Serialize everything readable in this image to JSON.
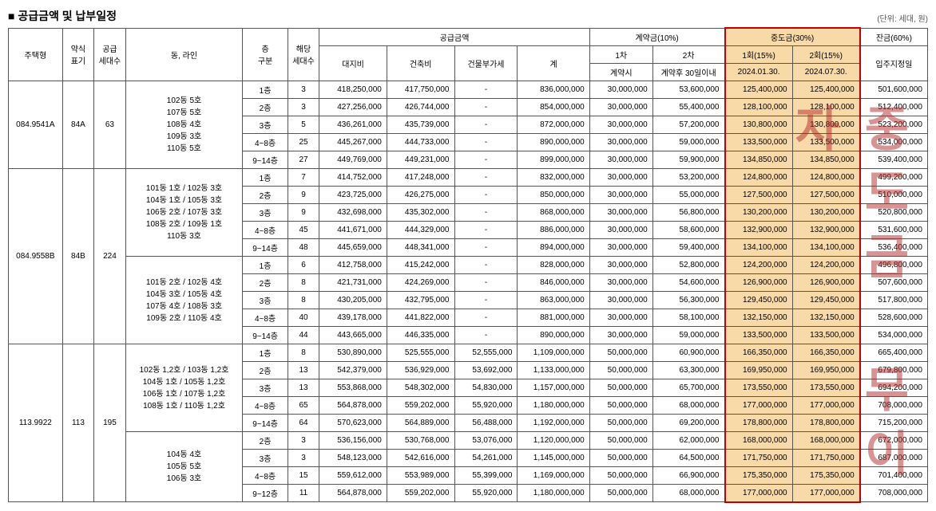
{
  "title": "■ 공급금액 및 납부일정",
  "unit": "(단위: 세대, 원)",
  "headers": {
    "housing_type": "주택형",
    "abbrev": "약식\n표기",
    "units": "공급\n세대수",
    "dong_line": "동, 라인",
    "floor": "층\n구분",
    "dong_units": "해당\n세대수",
    "supply_amount": "공급금액",
    "land": "대지비",
    "build": "건축비",
    "vat": "건물부가세",
    "total": "계",
    "contract_group": "계약금(10%)",
    "c1": "1차",
    "c2": "2차",
    "c1_sub": "계약시",
    "c2_sub": "계약후 30일이내",
    "interim_group": "중도금(30%)",
    "i1": "1회(15%)",
    "i2": "2회(15%)",
    "i1_date": "2024.01.30.",
    "i2_date": "2024.07.30.",
    "balance_group": "잔금(60%)",
    "balance_sub": "입주지정일"
  },
  "groups": [
    {
      "housing_type": "084.9541A",
      "abbrev": "84A",
      "units": "63",
      "blocks": [
        {
          "dong": "102동 5호\n107동 5호\n108동 4호\n109동 3호\n110동 5호",
          "rows": [
            {
              "floor": "1층",
              "u": "3",
              "land": "418,250,000",
              "build": "417,750,000",
              "vat": "-",
              "total": "836,000,000",
              "c1": "30,000,000",
              "c2": "53,600,000",
              "i1": "125,400,000",
              "i2": "125,400,000",
              "bal": "501,600,000"
            },
            {
              "floor": "2층",
              "u": "3",
              "land": "427,256,000",
              "build": "426,744,000",
              "vat": "-",
              "total": "854,000,000",
              "c1": "30,000,000",
              "c2": "55,400,000",
              "i1": "128,100,000",
              "i2": "128,100,000",
              "bal": "512,400,000"
            },
            {
              "floor": "3층",
              "u": "5",
              "land": "436,261,000",
              "build": "435,739,000",
              "vat": "-",
              "total": "872,000,000",
              "c1": "30,000,000",
              "c2": "57,200,000",
              "i1": "130,800,000",
              "i2": "130,800,000",
              "bal": "523,200,000"
            },
            {
              "floor": "4~8층",
              "u": "25",
              "land": "445,267,000",
              "build": "444,733,000",
              "vat": "-",
              "total": "890,000,000",
              "c1": "30,000,000",
              "c2": "59,000,000",
              "i1": "133,500,000",
              "i2": "133,500,000",
              "bal": "534,000,000"
            },
            {
              "floor": "9~14층",
              "u": "27",
              "land": "449,769,000",
              "build": "449,231,000",
              "vat": "-",
              "total": "899,000,000",
              "c1": "30,000,000",
              "c2": "59,900,000",
              "i1": "134,850,000",
              "i2": "134,850,000",
              "bal": "539,400,000"
            }
          ]
        }
      ]
    },
    {
      "housing_type": "084.9558B",
      "abbrev": "84B",
      "units": "224",
      "blocks": [
        {
          "dong": "101동 1호 / 102동 3호\n104동 1호 / 105동 3호\n106동 2호 / 107동 3호\n108동 2호 / 109동 1호\n110동 3호",
          "rows": [
            {
              "floor": "1층",
              "u": "7",
              "land": "414,752,000",
              "build": "417,248,000",
              "vat": "-",
              "total": "832,000,000",
              "c1": "30,000,000",
              "c2": "53,200,000",
              "i1": "124,800,000",
              "i2": "124,800,000",
              "bal": "499,200,000"
            },
            {
              "floor": "2층",
              "u": "9",
              "land": "423,725,000",
              "build": "426,275,000",
              "vat": "-",
              "total": "850,000,000",
              "c1": "30,000,000",
              "c2": "55,000,000",
              "i1": "127,500,000",
              "i2": "127,500,000",
              "bal": "510,000,000"
            },
            {
              "floor": "3층",
              "u": "9",
              "land": "432,698,000",
              "build": "435,302,000",
              "vat": "-",
              "total": "868,000,000",
              "c1": "30,000,000",
              "c2": "56,800,000",
              "i1": "130,200,000",
              "i2": "130,200,000",
              "bal": "520,800,000"
            },
            {
              "floor": "4~8층",
              "u": "45",
              "land": "441,671,000",
              "build": "444,329,000",
              "vat": "-",
              "total": "886,000,000",
              "c1": "30,000,000",
              "c2": "58,600,000",
              "i1": "132,900,000",
              "i2": "132,900,000",
              "bal": "531,600,000"
            },
            {
              "floor": "9~14층",
              "u": "48",
              "land": "445,659,000",
              "build": "448,341,000",
              "vat": "-",
              "total": "894,000,000",
              "c1": "30,000,000",
              "c2": "59,400,000",
              "i1": "134,100,000",
              "i2": "134,100,000",
              "bal": "536,400,000"
            }
          ]
        },
        {
          "dong": "101동 2호 / 102동 4호\n104동 3호 / 105동 4호\n107동 4호 / 108동 3호\n109동 2호 / 110동 4호",
          "rows": [
            {
              "floor": "1층",
              "u": "6",
              "land": "412,758,000",
              "build": "415,242,000",
              "vat": "-",
              "total": "828,000,000",
              "c1": "30,000,000",
              "c2": "52,800,000",
              "i1": "124,200,000",
              "i2": "124,200,000",
              "bal": "496,800,000"
            },
            {
              "floor": "2층",
              "u": "8",
              "land": "421,731,000",
              "build": "424,269,000",
              "vat": "-",
              "total": "846,000,000",
              "c1": "30,000,000",
              "c2": "54,600,000",
              "i1": "126,900,000",
              "i2": "126,900,000",
              "bal": "507,600,000"
            },
            {
              "floor": "3층",
              "u": "8",
              "land": "430,205,000",
              "build": "432,795,000",
              "vat": "-",
              "total": "863,000,000",
              "c1": "30,000,000",
              "c2": "56,300,000",
              "i1": "129,450,000",
              "i2": "129,450,000",
              "bal": "517,800,000"
            },
            {
              "floor": "4~8층",
              "u": "40",
              "land": "439,178,000",
              "build": "441,822,000",
              "vat": "-",
              "total": "881,000,000",
              "c1": "30,000,000",
              "c2": "58,100,000",
              "i1": "132,150,000",
              "i2": "132,150,000",
              "bal": "528,600,000"
            },
            {
              "floor": "9~14층",
              "u": "44",
              "land": "443,665,000",
              "build": "446,335,000",
              "vat": "-",
              "total": "890,000,000",
              "c1": "30,000,000",
              "c2": "59,000,000",
              "i1": "133,500,000",
              "i2": "133,500,000",
              "bal": "534,000,000"
            }
          ]
        }
      ]
    },
    {
      "housing_type": "113.9922",
      "abbrev": "113",
      "units": "195",
      "blocks": [
        {
          "dong": "102동 1,2호 / 103동 1,2호\n104동 1호 / 105동 1,2호\n106동 1호 / 107동 1,2호\n108동 1호 / 110동 1,2호",
          "rows": [
            {
              "floor": "1층",
              "u": "8",
              "land": "530,890,000",
              "build": "525,555,000",
              "vat": "52,555,000",
              "total": "1,109,000,000",
              "c1": "50,000,000",
              "c2": "60,900,000",
              "i1": "166,350,000",
              "i2": "166,350,000",
              "bal": "665,400,000"
            },
            {
              "floor": "2층",
              "u": "13",
              "land": "542,379,000",
              "build": "536,929,000",
              "vat": "53,692,000",
              "total": "1,133,000,000",
              "c1": "50,000,000",
              "c2": "63,300,000",
              "i1": "169,950,000",
              "i2": "169,950,000",
              "bal": "679,800,000"
            },
            {
              "floor": "3층",
              "u": "13",
              "land": "553,868,000",
              "build": "548,302,000",
              "vat": "54,830,000",
              "total": "1,157,000,000",
              "c1": "50,000,000",
              "c2": "65,700,000",
              "i1": "173,550,000",
              "i2": "173,550,000",
              "bal": "694,200,000"
            },
            {
              "floor": "4~8층",
              "u": "65",
              "land": "564,878,000",
              "build": "559,202,000",
              "vat": "55,920,000",
              "total": "1,180,000,000",
              "c1": "50,000,000",
              "c2": "68,000,000",
              "i1": "177,000,000",
              "i2": "177,000,000",
              "bal": "708,000,000"
            },
            {
              "floor": "9~14층",
              "u": "64",
              "land": "570,623,000",
              "build": "564,889,000",
              "vat": "56,488,000",
              "total": "1,192,000,000",
              "c1": "50,000,000",
              "c2": "69,200,000",
              "i1": "178,800,000",
              "i2": "178,800,000",
              "bal": "715,200,000"
            }
          ]
        },
        {
          "dong": "104동 4호\n105동 5호\n106동 3호",
          "rows": [
            {
              "floor": "2층",
              "u": "3",
              "land": "536,156,000",
              "build": "530,768,000",
              "vat": "53,076,000",
              "total": "1,120,000,000",
              "c1": "50,000,000",
              "c2": "62,000,000",
              "i1": "168,000,000",
              "i2": "168,000,000",
              "bal": "672,000,000"
            },
            {
              "floor": "3층",
              "u": "3",
              "land": "548,123,000",
              "build": "542,616,000",
              "vat": "54,261,000",
              "total": "1,145,000,000",
              "c1": "50,000,000",
              "c2": "64,500,000",
              "i1": "171,750,000",
              "i2": "171,750,000",
              "bal": "687,000,000"
            },
            {
              "floor": "4~8층",
              "u": "15",
              "land": "559,612,000",
              "build": "553,989,000",
              "vat": "55,399,000",
              "total": "1,169,000,000",
              "c1": "50,000,000",
              "c2": "66,900,000",
              "i1": "175,350,000",
              "i2": "175,350,000",
              "bal": "701,400,000"
            },
            {
              "floor": "9~12층",
              "u": "11",
              "land": "564,878,000",
              "build": "559,202,000",
              "vat": "55,920,000",
              "total": "1,180,000,000",
              "c1": "50,000,000",
              "c2": "68,000,000",
              "i1": "177,000,000",
              "i2": "177,000,000",
              "bal": "708,000,000"
            }
          ]
        }
      ]
    }
  ],
  "watermark": "중도금 무이자"
}
